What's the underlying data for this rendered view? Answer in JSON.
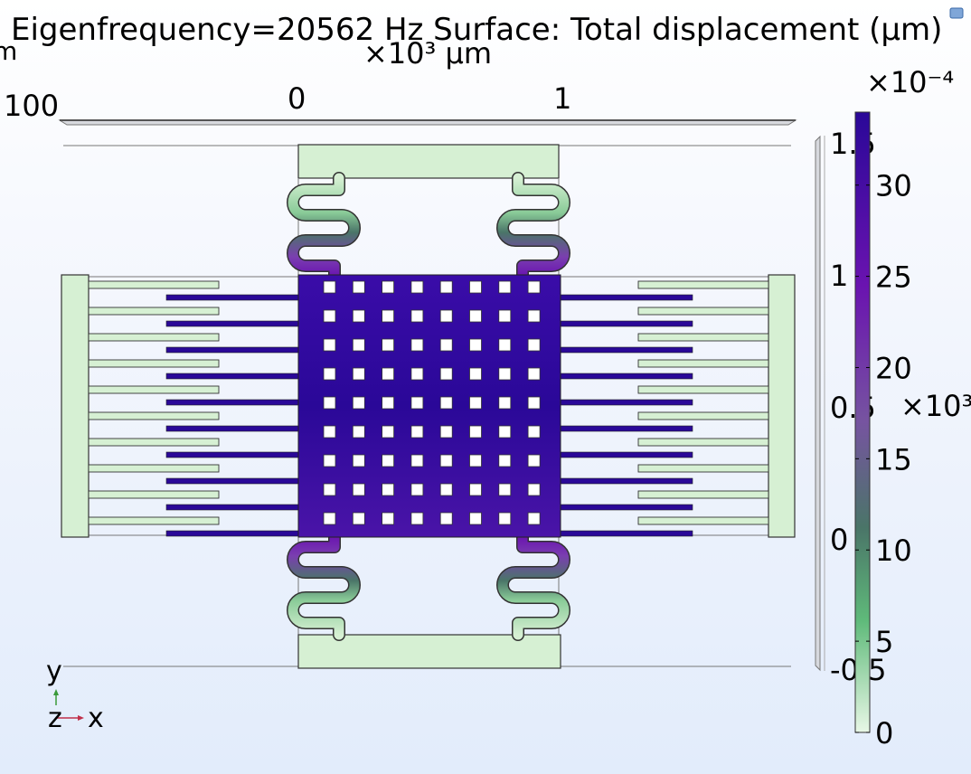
{
  "plot": {
    "title": "Eigenfrequency=20562 Hz  Surface: Total displacement (μm)",
    "x_scale_label": "×10³ μm",
    "x_tick_labels": [
      "0",
      "1"
    ],
    "clipped_left_tick": "100",
    "clipped_unit_left": "m",
    "y_tick_labels": [
      "1.5",
      "1",
      "0.5",
      "0",
      "-0.5"
    ],
    "y_scale_label": "×10³",
    "axis_triad": {
      "y": "y",
      "z": "z",
      "x": "x"
    }
  },
  "colorbar": {
    "exponent": "×10⁻⁴",
    "min": 0,
    "max": 34,
    "tick_values": [
      0,
      5,
      10,
      15,
      20,
      25,
      30
    ],
    "tick_labels": [
      "0",
      "5",
      "10",
      "15",
      "20",
      "25",
      "30"
    ],
    "colors": {
      "low": "#e8f7e6",
      "green": "#5fba7a",
      "teal": "#4a7568",
      "mid": "#7654a0",
      "purple": "#6a13b0",
      "high": "#2a0898"
    }
  },
  "colors": {
    "fixed_anchor": "#d6f0d3",
    "outline": "#333333"
  }
}
